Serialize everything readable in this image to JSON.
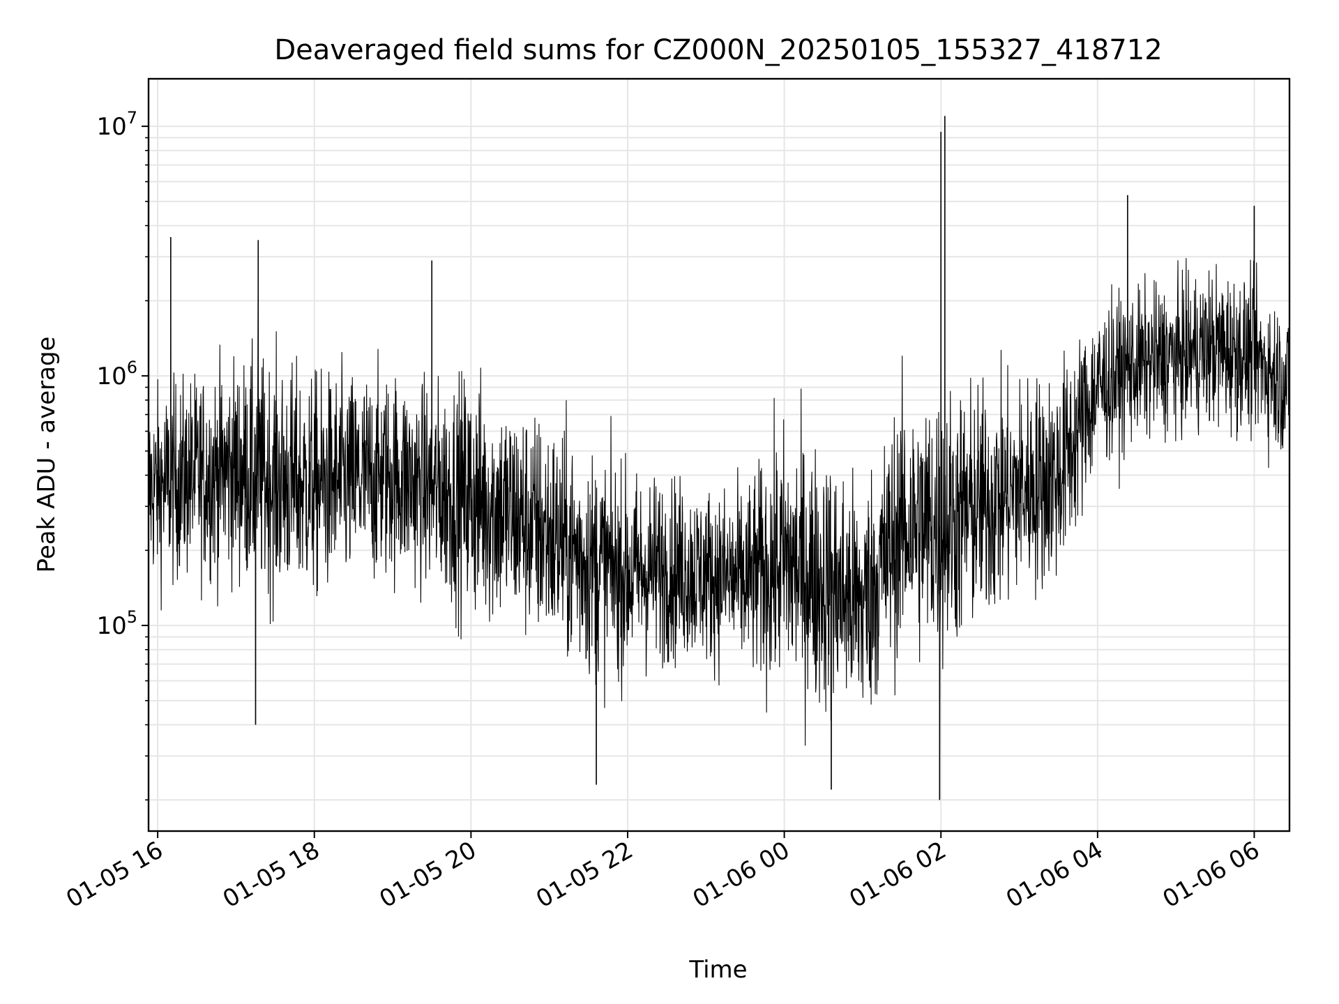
{
  "chart_data": {
    "type": "line",
    "title": "Deaveraged field sums for CZ000N_20250105_155327_418712",
    "xlabel": "Time",
    "ylabel": "Peak ADU - average",
    "x_range": [
      "2025-01-05 15:53",
      "2025-01-06 06:27"
    ],
    "x_ticks": [
      {
        "t": "2025-01-05 16:00",
        "label": "01-05 16"
      },
      {
        "t": "2025-01-05 18:00",
        "label": "01-05 18"
      },
      {
        "t": "2025-01-05 20:00",
        "label": "01-05 20"
      },
      {
        "t": "2025-01-05 22:00",
        "label": "01-05 22"
      },
      {
        "t": "2025-01-06 00:00",
        "label": "01-06 00"
      },
      {
        "t": "2025-01-06 02:00",
        "label": "01-06 02"
      },
      {
        "t": "2025-01-06 04:00",
        "label": "01-06 04"
      },
      {
        "t": "2025-01-06 06:00",
        "label": "01-06 06"
      }
    ],
    "y_scale": "log",
    "y_range": [
      15000,
      15500000
    ],
    "y_ticks": [
      {
        "value": 100000,
        "base": "10",
        "exp": "5"
      },
      {
        "value": 1000000,
        "base": "10",
        "exp": "6"
      },
      {
        "value": 10000000,
        "base": "10",
        "exp": "7"
      }
    ],
    "grid": true,
    "line_color": "#000000",
    "grid_color": "#e6e6e6",
    "series": [
      {
        "name": "",
        "envelope": [
          {
            "t": "2025-01-05 15:53",
            "median": 350000,
            "low": 150000,
            "high": 1000000
          },
          {
            "t": "2025-01-05 16:30",
            "median": 400000,
            "low": 160000,
            "high": 1200000
          },
          {
            "t": "2025-01-05 17:00",
            "median": 420000,
            "low": 170000,
            "high": 1500000
          },
          {
            "t": "2025-01-05 17:30",
            "median": 380000,
            "low": 130000,
            "high": 1400000
          },
          {
            "t": "2025-01-05 18:00",
            "median": 360000,
            "low": 120000,
            "high": 1100000
          },
          {
            "t": "2025-01-05 18:30",
            "median": 380000,
            "low": 130000,
            "high": 1100000
          },
          {
            "t": "2025-01-05 19:00",
            "median": 400000,
            "low": 140000,
            "high": 1100000
          },
          {
            "t": "2025-01-05 19:30",
            "median": 350000,
            "low": 130000,
            "high": 1000000
          },
          {
            "t": "2025-01-05 20:00",
            "median": 330000,
            "low": 110000,
            "high": 1300000
          },
          {
            "t": "2025-01-05 20:30",
            "median": 280000,
            "low": 100000,
            "high": 1000000
          },
          {
            "t": "2025-01-05 21:00",
            "median": 230000,
            "low": 80000,
            "high": 800000
          },
          {
            "t": "2025-01-05 21:30",
            "median": 180000,
            "low": 60000,
            "high": 600000
          },
          {
            "t": "2025-01-05 22:00",
            "median": 160000,
            "low": 60000,
            "high": 450000
          },
          {
            "t": "2025-01-05 22:30",
            "median": 170000,
            "low": 70000,
            "high": 450000
          },
          {
            "t": "2025-01-05 23:00",
            "median": 160000,
            "low": 70000,
            "high": 400000
          },
          {
            "t": "2025-01-05 23:30",
            "median": 150000,
            "low": 60000,
            "high": 400000
          },
          {
            "t": "2025-01-06 00:00",
            "median": 180000,
            "low": 50000,
            "high": 700000
          },
          {
            "t": "2025-01-06 00:30",
            "median": 150000,
            "low": 45000,
            "high": 600000
          },
          {
            "t": "2025-01-06 01:00",
            "median": 120000,
            "low": 45000,
            "high": 500000
          },
          {
            "t": "2025-01-06 01:30",
            "median": 250000,
            "low": 70000,
            "high": 900000
          },
          {
            "t": "2025-01-06 02:00",
            "median": 250000,
            "low": 60000,
            "high": 900000
          },
          {
            "t": "2025-01-06 02:30",
            "median": 300000,
            "low": 80000,
            "high": 900000
          },
          {
            "t": "2025-01-06 03:00",
            "median": 350000,
            "low": 100000,
            "high": 900000
          },
          {
            "t": "2025-01-06 03:30",
            "median": 400000,
            "low": 120000,
            "high": 1000000
          },
          {
            "t": "2025-01-06 04:00",
            "median": 900000,
            "low": 400000,
            "high": 2000000
          },
          {
            "t": "2025-01-06 04:30",
            "median": 1100000,
            "low": 500000,
            "high": 2200000
          },
          {
            "t": "2025-01-06 05:00",
            "median": 1200000,
            "low": 500000,
            "high": 2300000
          },
          {
            "t": "2025-01-06 05:30",
            "median": 1300000,
            "low": 500000,
            "high": 2500000
          },
          {
            "t": "2025-01-06 06:00",
            "median": 1200000,
            "low": 500000,
            "high": 2300000
          },
          {
            "t": "2025-01-06 06:27",
            "median": 900000,
            "low": 400000,
            "high": 1800000
          }
        ],
        "notable_points": [
          {
            "t": "2025-01-05 16:10",
            "value": 3600000
          },
          {
            "t": "2025-01-05 17:15",
            "value": 40000
          },
          {
            "t": "2025-01-05 17:17",
            "value": 3500000
          },
          {
            "t": "2025-01-05 19:30",
            "value": 2900000
          },
          {
            "t": "2025-01-05 21:36",
            "value": 23000
          },
          {
            "t": "2025-01-06 00:36",
            "value": 22000
          },
          {
            "t": "2025-01-06 01:59",
            "value": 20000
          },
          {
            "t": "2025-01-06 02:00",
            "value": 9500000
          },
          {
            "t": "2025-01-06 02:03",
            "value": 11000000
          },
          {
            "t": "2025-01-06 04:23",
            "value": 5300000
          },
          {
            "t": "2025-01-06 06:00",
            "value": 4800000
          }
        ]
      }
    ]
  }
}
